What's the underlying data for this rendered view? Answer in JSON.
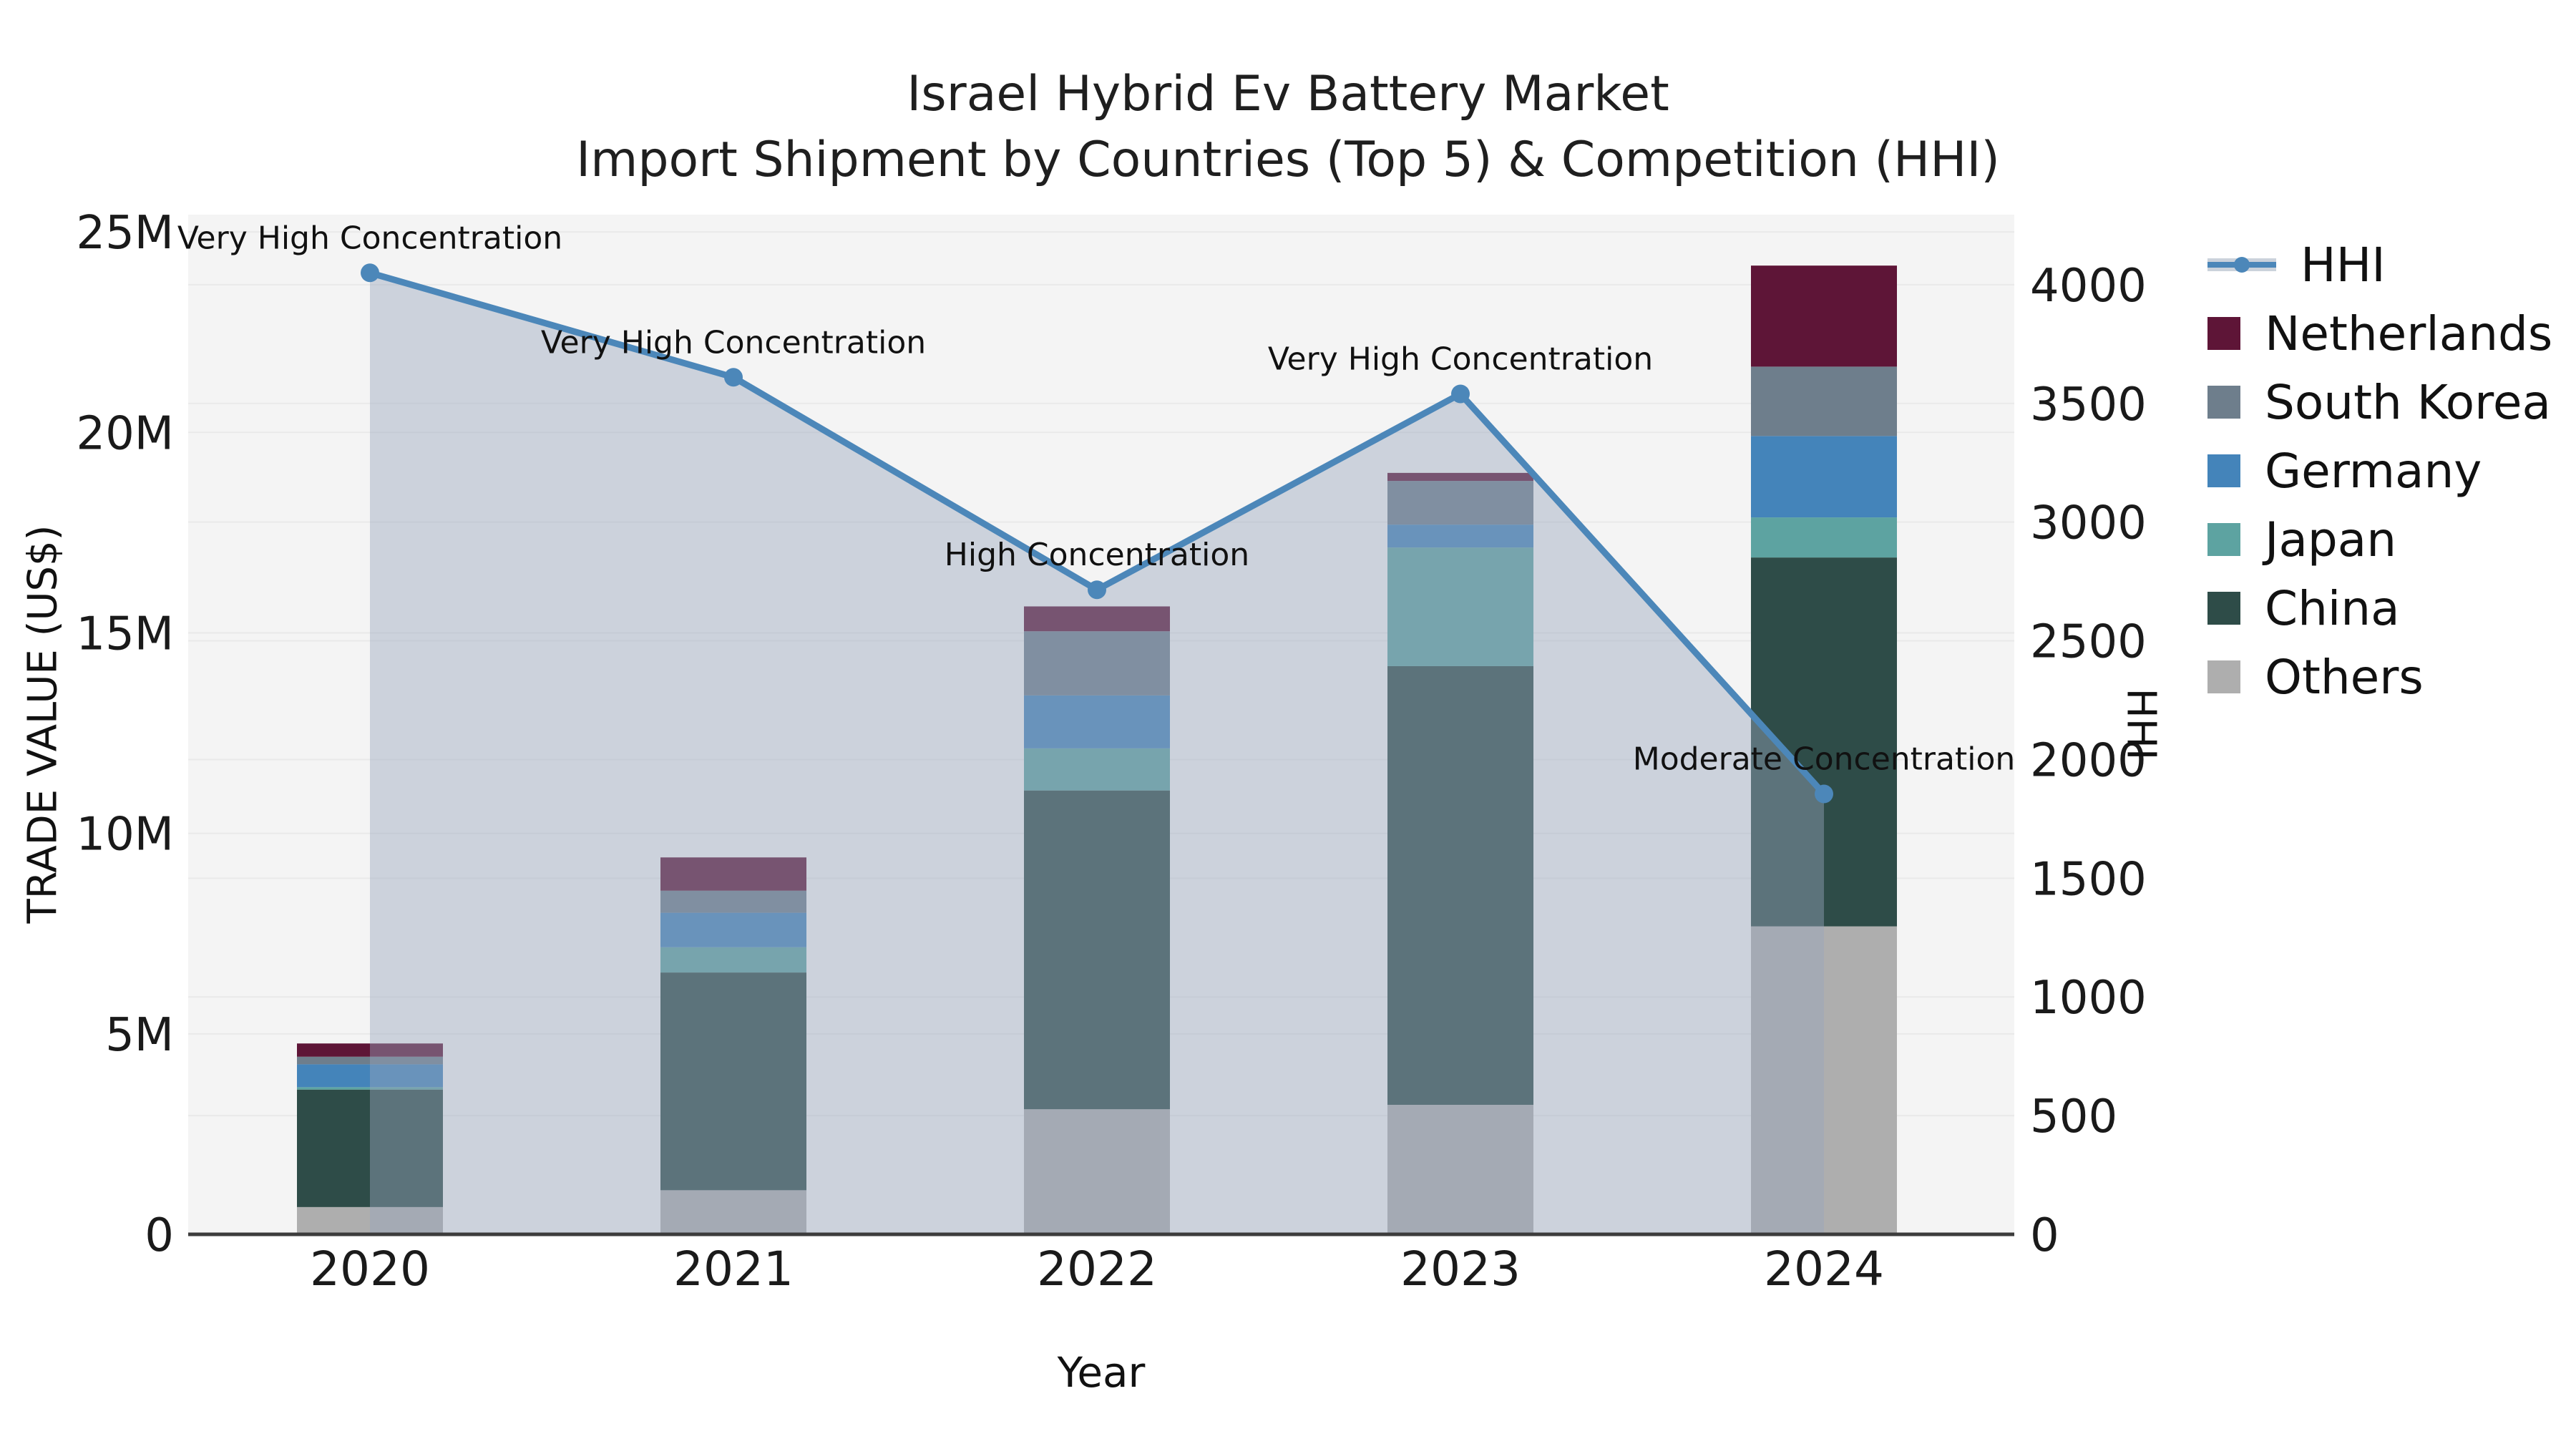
{
  "title": {
    "line1": "Israel Hybrid Ev Battery Market",
    "line2": "Import Shipment by Countries (Top 5) & Competition (HHI)"
  },
  "axes": {
    "left_title": "TRADE VALUE (US$)",
    "right_title": "HHI",
    "x_title": "Year"
  },
  "chart_data": {
    "type": "combo: stacked-bar + line-area",
    "categories": [
      "2020",
      "2021",
      "2022",
      "2023",
      "2024"
    ],
    "bar_value_unit": "million US$",
    "series": [
      {
        "name": "Others",
        "color": "#aeaeae",
        "values": [
          0.68,
          1.1,
          3.12,
          3.23,
          7.68
        ]
      },
      {
        "name": "China",
        "color": "#2e4c48",
        "values": [
          2.93,
          5.43,
          7.95,
          10.94,
          9.2
        ]
      },
      {
        "name": "Japan",
        "color": "#5da3a1",
        "values": [
          0.06,
          0.63,
          1.05,
          2.96,
          1.0
        ]
      },
      {
        "name": "Germany",
        "color": "#4484ba",
        "values": [
          0.57,
          0.86,
          1.32,
          0.57,
          2.03
        ]
      },
      {
        "name": "South Korea",
        "color": "#6e7e8c",
        "values": [
          0.19,
          0.55,
          1.6,
          1.09,
          1.73
        ]
      },
      {
        "name": "Netherlands",
        "color": "#5e1537",
        "values": [
          0.33,
          0.83,
          0.62,
          0.2,
          2.52
        ]
      }
    ],
    "line": {
      "name": "HHI",
      "color": "#4c87b9",
      "area_fill": "rgba(152,166,188,0.44)",
      "values": [
        4050,
        3610,
        2715,
        3540,
        1855
      ]
    },
    "annotations": [
      "Very High Concentration",
      "Very High Concentration",
      "High Concentration",
      "Very High Concentration",
      "Moderate Concentration"
    ],
    "left_axis": {
      "label": "TRADE VALUE (US$)",
      "tick_labels": [
        "0",
        "5M",
        "10M",
        "15M",
        "20M",
        "25M"
      ],
      "tick_values_millions": [
        0,
        5,
        10,
        15,
        20,
        25
      ],
      "range_millions": [
        0,
        25.43
      ]
    },
    "right_axis": {
      "label": "HHI",
      "tick_values": [
        0,
        500,
        1000,
        1500,
        2000,
        2500,
        3000,
        3500,
        4000
      ],
      "range": [
        0,
        4295
      ]
    },
    "x_axis": {
      "label": "Year"
    },
    "legend_order": [
      "HHI",
      "Netherlands",
      "South Korea",
      "Germany",
      "Japan",
      "China",
      "Others"
    ],
    "grid": true,
    "legend_position": "right"
  }
}
